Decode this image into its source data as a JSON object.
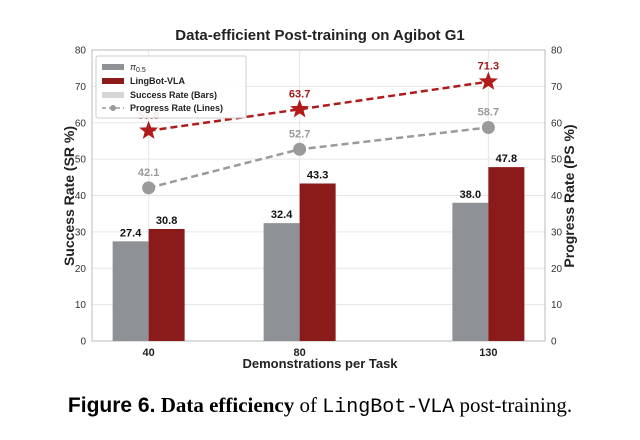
{
  "chart_data": {
    "type": "bar",
    "title": "Data-efficient Post-training on Agibot G1",
    "xlabel": "Demonstrations per Task",
    "ylabel_left": "Success Rate (SR %)",
    "ylabel_right": "Progress Rate (PS %)",
    "ylim": [
      0,
      80
    ],
    "yticks": [
      "0",
      "10",
      "20",
      "30",
      "40",
      "50",
      "60",
      "70",
      "80"
    ],
    "categories": [
      "40",
      "80",
      "130"
    ],
    "x_positions": [
      40,
      80,
      130
    ],
    "bar_series": [
      {
        "name": "π0.5",
        "name_base": "π",
        "name_sub": "0.5",
        "color": "#8e9196",
        "values": [
          27.4,
          32.4,
          38.0
        ],
        "labels": [
          "27.4",
          "32.4",
          "38.0"
        ]
      },
      {
        "name": "LingBot-VLA",
        "color": "#8b1a1a",
        "values": [
          30.8,
          43.3,
          47.8
        ],
        "labels": [
          "30.8",
          "43.3",
          "47.8"
        ]
      }
    ],
    "line_series": [
      {
        "name": "π0.5",
        "color": "#9a9a9a",
        "marker": "circle",
        "values": [
          42.1,
          52.7,
          58.7
        ],
        "labels": [
          "42.1",
          "52.7",
          "58.7"
        ]
      },
      {
        "name": "LingBot-VLA",
        "color": "#b01c1c",
        "marker": "star",
        "values": [
          57.8,
          63.7,
          71.3
        ],
        "labels": [
          "57.8",
          "63.7",
          "71.3"
        ]
      }
    ],
    "legend": {
      "position": "top-left",
      "entries": [
        "π0.5",
        "LingBot-VLA",
        "Success Rate (Bars)",
        "Progress Rate (Lines)"
      ]
    },
    "grid": true
  },
  "caption": {
    "label": "Figure 6.",
    "bold": "Data efficiency",
    "text1": " of ",
    "mono": "LingBot-VLA",
    "text2": " post-training."
  }
}
